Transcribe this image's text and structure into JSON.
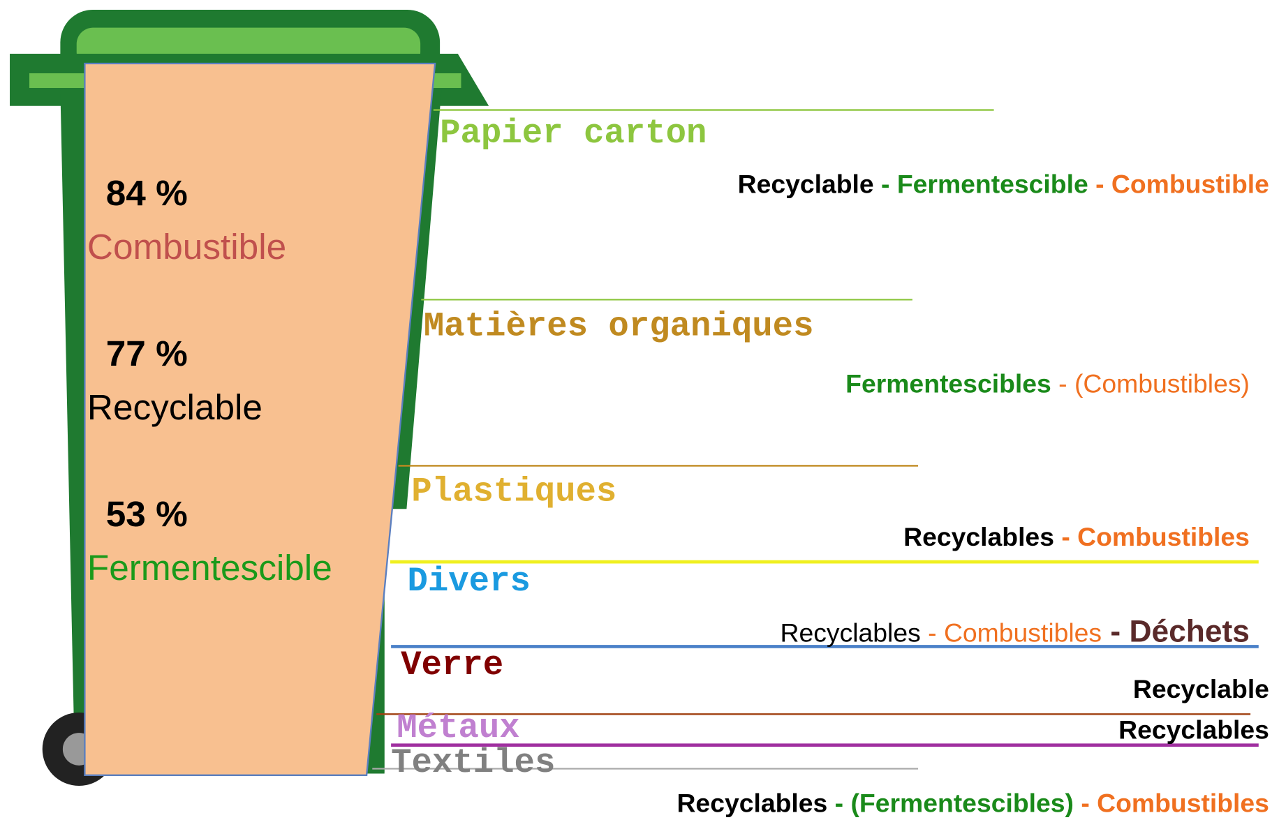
{
  "stats": [
    {
      "value": "84 %",
      "label": "Combustible",
      "color": "#c0504d"
    },
    {
      "value": "77 %",
      "label": "Recyclable",
      "color": "#000000"
    },
    {
      "value": "53 %",
      "label": "Fermentescible",
      "color": "#1a9a1a"
    }
  ],
  "categories": [
    {
      "name": "Papier carton",
      "color": "#8dc63f",
      "properties": [
        {
          "text": "Recyclable",
          "color": "#000000",
          "bold": true
        },
        {
          "text": " - Fermentescible",
          "color": "#1a8a1a",
          "bold": true
        },
        {
          "text": " - Combustible",
          "color": "#f07020",
          "bold": true
        }
      ]
    },
    {
      "name": "Matières organiques",
      "color": "#c08a20",
      "properties": [
        {
          "text": "Fermentescibles",
          "color": "#1a8a1a",
          "bold": true
        },
        {
          "text": " - (Combustibles)",
          "color": "#f07020",
          "bold": false
        }
      ]
    },
    {
      "name": "Plastiques",
      "color": "#e0b030",
      "properties": [
        {
          "text": "Recyclables",
          "color": "#000000",
          "bold": true
        },
        {
          "text": " - Combustibles",
          "color": "#f07020",
          "bold": true
        }
      ]
    },
    {
      "name": "Divers",
      "color": "#1a9ae0",
      "properties": [
        {
          "text": "Recyclables",
          "color": "#000000",
          "bold": false
        },
        {
          "text": " - Combustibles",
          "color": "#f07020",
          "bold": false
        },
        {
          "text": " - Déchets",
          "color": "#5a2a2a",
          "bold": true
        }
      ]
    },
    {
      "name": "Verre",
      "color": "#800000",
      "properties": [
        {
          "text": "Recyclable",
          "color": "#000000",
          "bold": true
        }
      ]
    },
    {
      "name": "Métaux",
      "color": "#c080d0",
      "properties": [
        {
          "text": "Recyclables",
          "color": "#000000",
          "bold": true
        }
      ]
    },
    {
      "name": "Textiles",
      "color": "#808080",
      "properties": [
        {
          "text": "Recyclables",
          "color": "#000000",
          "bold": true
        },
        {
          "text": " - (Fermentescibles)",
          "color": "#1a8a1a",
          "bold": true
        },
        {
          "text": " - Combustibles",
          "color": "#f07020",
          "bold": true
        }
      ]
    }
  ]
}
